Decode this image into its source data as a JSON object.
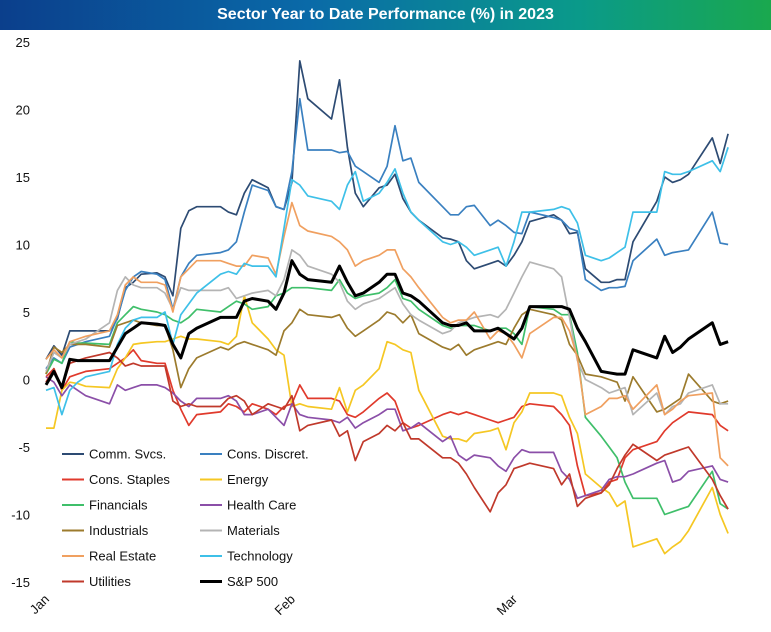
{
  "chart_data": {
    "type": "line",
    "title": "Sector Year to Date Performance (%) in 2023",
    "xlabel": "",
    "ylabel": "",
    "ylim": [
      -15,
      25
    ],
    "yticks": [
      -15,
      -10,
      -5,
      0,
      5,
      10,
      15,
      20,
      25
    ],
    "xticks": [
      {
        "label": "Jan",
        "day": 0
      },
      {
        "label": "Feb",
        "day": 31
      },
      {
        "label": "Mar",
        "day": 59
      }
    ],
    "x_days": [
      0,
      1,
      2,
      3,
      4,
      5,
      8,
      9,
      10,
      11,
      12,
      14,
      15,
      16,
      17,
      18,
      19,
      22,
      23,
      24,
      25,
      26,
      28,
      29,
      30,
      31,
      32,
      33,
      36,
      37,
      38,
      39,
      40,
      42,
      43,
      44,
      45,
      46,
      47,
      50,
      51,
      52,
      53,
      54,
      56,
      57,
      58,
      59,
      60,
      61,
      64,
      65,
      66,
      67,
      68,
      70,
      71,
      72,
      73,
      74,
      77,
      78,
      79,
      80,
      81,
      84,
      85,
      86,
      87,
      88
    ],
    "grid": false,
    "legend": "bottom-left",
    "series": [
      {
        "name": "Comm. Svcs.",
        "color": "#2d4b73",
        "values": [
          1.5,
          2.5,
          1.8,
          3.6,
          3.6,
          3.6,
          3.6,
          4.5,
          6.8,
          7.2,
          7.8,
          7.9,
          7.6,
          6.2,
          11.2,
          12.5,
          12.8,
          12.8,
          12.4,
          12.2,
          13.8,
          14.8,
          14.2,
          12.8,
          12.6,
          14.6,
          23.6,
          20.8,
          19.3,
          22.2,
          17.2,
          13.8,
          12.8,
          14.2,
          14.4,
          15.2,
          13.4,
          12.4,
          11.8,
          10.5,
          10.4,
          10.2,
          8.8,
          8.2,
          8.6,
          8.8,
          8.4,
          9.2,
          10.2,
          11.7,
          12.2,
          11.8,
          10.8,
          10.9,
          8.2,
          7.2,
          7.2,
          7.4,
          7.4,
          10.2,
          13.2,
          15.0,
          14.6,
          14.8,
          15.2,
          17.9,
          16.0,
          18.2
        ]
      },
      {
        "name": "Cons. Discret.",
        "color": "#3a80c0",
        "values": [
          0.8,
          1.6,
          1.2,
          2.4,
          2.6,
          2.8,
          3.2,
          4.6,
          6.6,
          7.6,
          8.0,
          7.8,
          7.4,
          5.2,
          7.6,
          8.6,
          9.2,
          9.4,
          9.6,
          10.2,
          12.4,
          14.4,
          14.0,
          12.8,
          12.6,
          15.4,
          20.8,
          17.0,
          17.0,
          16.8,
          16.9,
          15.8,
          15.4,
          14.6,
          15.8,
          18.8,
          16.2,
          16.4,
          14.6,
          12.8,
          12.2,
          12.2,
          12.8,
          12.9,
          11.4,
          11.8,
          11.4,
          10.9,
          10.8,
          12.4,
          12.0,
          11.8,
          11.2,
          11.0,
          7.4,
          6.6,
          6.8,
          6.8,
          6.9,
          8.8,
          10.4,
          9.2,
          9.4,
          9.5,
          9.6,
          12.4,
          10.1,
          10.0
        ]
      },
      {
        "name": "Cons. Staples",
        "color": "#e03a2c",
        "values": [
          0.2,
          0.8,
          -0.8,
          0.2,
          0.4,
          0.6,
          0.8,
          1.2,
          1.6,
          2.2,
          1.4,
          1.2,
          1.2,
          -0.8,
          -2.2,
          -3.4,
          -2.6,
          -2.4,
          -1.8,
          -2.0,
          -2.4,
          -1.8,
          -2.2,
          -2.6,
          -2.0,
          -1.8,
          -0.4,
          -1.4,
          -1.4,
          -1.6,
          -2.6,
          -2.8,
          -2.4,
          -1.4,
          -1.0,
          -1.6,
          -3.2,
          -3.6,
          -3.4,
          -2.6,
          -2.4,
          -2.6,
          -2.4,
          -2.6,
          -3.0,
          -3.2,
          -3.0,
          -2.8,
          -2.0,
          -1.8,
          -2.0,
          -2.6,
          -3.4,
          -6.4,
          -8.6,
          -8.4,
          -7.6,
          -7.4,
          -5.8,
          -5.2,
          -4.6,
          -3.8,
          -3.2,
          -2.8,
          -2.4,
          -2.6,
          -3.4,
          -3.8
        ]
      },
      {
        "name": "Energy",
        "color": "#f5c723",
        "values": [
          -3.6,
          -3.6,
          -0.8,
          -0.2,
          -0.3,
          -0.5,
          -0.6,
          0.8,
          1.6,
          2.6,
          2.7,
          2.8,
          2.8,
          3.0,
          3.2,
          3.0,
          3.0,
          2.8,
          2.6,
          3.2,
          6.2,
          4.2,
          3.0,
          2.2,
          1.8,
          -2.0,
          -1.8,
          -2.0,
          -2.2,
          -0.6,
          -2.4,
          -0.8,
          -0.4,
          0.8,
          2.8,
          2.6,
          2.2,
          2.0,
          -0.8,
          -4.2,
          -4.4,
          -4.4,
          -4.6,
          -4.0,
          -3.8,
          -3.6,
          -5.2,
          -3.2,
          -2.4,
          -1.0,
          -1.0,
          -1.2,
          -2.8,
          -4.0,
          -7.0,
          -8.0,
          -8.4,
          -9.4,
          -9.0,
          -12.4,
          -11.8,
          -12.9,
          -12.4,
          -12.0,
          -11.2,
          -8.0,
          -10.0,
          -11.4
        ]
      },
      {
        "name": "Financials",
        "color": "#3fbf6a",
        "values": [
          0.4,
          1.5,
          1.2,
          2.8,
          2.7,
          2.7,
          2.6,
          4.2,
          4.8,
          5.4,
          5.2,
          5.0,
          4.8,
          4.4,
          4.2,
          4.6,
          5.2,
          5.0,
          5.4,
          5.8,
          5.6,
          5.2,
          5.4,
          6.2,
          6.4,
          6.8,
          6.8,
          6.8,
          6.6,
          7.4,
          6.4,
          6.0,
          6.2,
          6.4,
          6.8,
          7.4,
          6.0,
          5.8,
          5.2,
          4.0,
          3.8,
          4.0,
          4.0,
          4.0,
          3.6,
          3.8,
          3.8,
          3.4,
          2.6,
          5.4,
          5.2,
          4.8,
          4.8,
          2.0,
          -2.8,
          -4.2,
          -5.0,
          -5.8,
          -7.6,
          -8.8,
          -8.8,
          -10.0,
          -9.8,
          -9.6,
          -9.4,
          -6.8,
          -9.2,
          -9.6
        ]
      },
      {
        "name": "Health Care",
        "color": "#8b4fa8",
        "values": [
          0.2,
          -0.2,
          -1.2,
          -0.4,
          -0.8,
          -1.2,
          -1.8,
          -0.4,
          -0.8,
          -0.6,
          -0.4,
          -0.4,
          -0.6,
          -1.0,
          -1.6,
          -2.0,
          -1.4,
          -1.4,
          -1.2,
          -1.6,
          -2.6,
          -2.6,
          -2.2,
          -2.8,
          -3.4,
          -1.8,
          -2.6,
          -2.8,
          -3.0,
          -3.2,
          -2.8,
          -3.6,
          -3.2,
          -2.6,
          -2.2,
          -2.2,
          -3.8,
          -3.6,
          -3.2,
          -4.6,
          -4.2,
          -5.6,
          -6.0,
          -5.6,
          -5.8,
          -6.4,
          -6.8,
          -5.8,
          -5.2,
          -5.4,
          -5.4,
          -6.8,
          -7.4,
          -8.8,
          -8.6,
          -8.2,
          -7.4,
          -7.2,
          -7.2,
          -7.0,
          -6.2,
          -6.0,
          -7.6,
          -7.4,
          -6.8,
          -6.4,
          -7.4,
          -7.6
        ]
      },
      {
        "name": "Industrials",
        "color": "#9c7b2d",
        "values": [
          0.4,
          2.4,
          2.0,
          2.6,
          2.6,
          2.6,
          2.4,
          4.0,
          4.2,
          4.4,
          4.2,
          4.0,
          4.0,
          2.2,
          -0.6,
          0.8,
          1.6,
          2.4,
          2.2,
          2.6,
          2.8,
          2.6,
          2.2,
          1.8,
          3.6,
          4.2,
          5.2,
          4.8,
          4.6,
          4.8,
          3.8,
          3.2,
          3.6,
          4.4,
          5.0,
          4.8,
          4.2,
          4.8,
          3.4,
          2.4,
          2.2,
          2.6,
          1.8,
          2.2,
          2.6,
          2.8,
          2.6,
          3.8,
          4.8,
          5.2,
          4.8,
          4.4,
          2.6,
          1.8,
          0.4,
          0.2,
          0.0,
          -0.2,
          -1.6,
          0.2,
          -2.4,
          -2.2,
          -1.8,
          -1.4,
          0.4,
          -1.6,
          -1.8,
          -1.6
        ]
      },
      {
        "name": "Materials",
        "color": "#b4b4b4",
        "values": [
          0.6,
          2.0,
          1.6,
          2.6,
          2.8,
          3.0,
          4.2,
          6.6,
          7.6,
          7.0,
          6.8,
          6.8,
          6.4,
          5.2,
          6.8,
          6.6,
          6.6,
          6.6,
          6.8,
          6.0,
          6.2,
          6.4,
          6.6,
          6.2,
          7.4,
          9.6,
          9.2,
          8.4,
          7.8,
          7.2,
          5.8,
          5.2,
          5.6,
          6.0,
          6.4,
          6.8,
          5.6,
          4.8,
          4.4,
          3.4,
          3.6,
          4.2,
          4.4,
          4.6,
          4.8,
          4.6,
          5.2,
          6.4,
          7.6,
          8.7,
          8.2,
          7.6,
          4.6,
          1.4,
          0.0,
          -0.6,
          -1.0,
          -0.8,
          -0.6,
          -2.6,
          -1.0,
          -2.6,
          -2.0,
          -1.8,
          -1.0,
          -0.4,
          -1.8,
          -1.8
        ]
      },
      {
        "name": "Real Estate",
        "color": "#f0a060",
        "values": [
          1.5,
          2.2,
          1.6,
          2.8,
          3.0,
          3.2,
          3.6,
          4.8,
          7.0,
          7.6,
          7.2,
          7.2,
          7.0,
          5.0,
          7.6,
          8.2,
          8.8,
          8.8,
          8.6,
          8.4,
          8.4,
          9.2,
          9.0,
          7.8,
          10.6,
          13.1,
          11.4,
          11.0,
          10.6,
          10.2,
          9.6,
          8.4,
          8.8,
          9.2,
          9.6,
          9.6,
          8.2,
          7.6,
          6.8,
          4.6,
          4.2,
          4.4,
          4.4,
          5.0,
          3.0,
          3.6,
          3.4,
          2.6,
          1.6,
          3.4,
          4.6,
          4.6,
          3.6,
          1.6,
          -2.6,
          -2.0,
          -1.4,
          -1.4,
          -1.2,
          -2.2,
          -0.4,
          -2.6,
          -2.2,
          -1.6,
          -1.2,
          -1.0,
          -5.8,
          -6.4
        ]
      },
      {
        "name": "Technology",
        "color": "#3ec0e8",
        "values": [
          -0.8,
          -0.6,
          -2.6,
          -0.8,
          -0.2,
          0.2,
          0.6,
          2.6,
          3.8,
          4.4,
          4.6,
          4.6,
          5.0,
          2.6,
          4.8,
          5.6,
          6.4,
          7.8,
          8.0,
          7.8,
          8.6,
          8.4,
          8.4,
          7.6,
          11.2,
          14.8,
          14.4,
          13.6,
          13.2,
          12.6,
          14.4,
          15.4,
          13.2,
          13.8,
          14.6,
          15.6,
          13.8,
          12.4,
          11.8,
          10.2,
          10.0,
          10.2,
          9.8,
          9.2,
          9.6,
          9.8,
          8.4,
          10.2,
          12.4,
          12.4,
          12.6,
          12.8,
          12.6,
          11.6,
          9.2,
          8.8,
          9.0,
          9.4,
          9.8,
          12.4,
          12.4,
          15.4,
          15.2,
          15.2,
          15.4,
          16.2,
          15.4,
          17.2
        ]
      },
      {
        "name": "Utilities",
        "color": "#c0392b",
        "values": [
          -0.2,
          0.8,
          -0.6,
          1.2,
          1.4,
          1.6,
          2.0,
          1.6,
          1.0,
          1.2,
          1.0,
          1.0,
          1.0,
          -1.6,
          -2.0,
          -1.8,
          -2.0,
          -2.0,
          -1.4,
          -1.2,
          -1.6,
          -2.6,
          -1.8,
          -2.0,
          -2.2,
          -1.2,
          -3.8,
          -3.4,
          -3.0,
          -4.2,
          -3.8,
          -6.0,
          -4.6,
          -4.0,
          -3.4,
          -3.8,
          -3.2,
          -4.4,
          -4.4,
          -5.8,
          -5.8,
          -6.2,
          -7.0,
          -8.0,
          -9.8,
          -8.4,
          -7.8,
          -6.6,
          -6.4,
          -6.2,
          -6.6,
          -7.8,
          -7.0,
          -9.4,
          -8.8,
          -8.4,
          -7.8,
          -6.6,
          -5.6,
          -4.8,
          -6.0,
          -5.6,
          -5.4,
          -5.2,
          -5.0,
          -7.4,
          -8.6,
          -9.6
        ]
      },
      {
        "name": "S&P 500",
        "color": "#000000",
        "values": [
          -0.4,
          0.6,
          -0.6,
          1.5,
          1.4,
          1.4,
          1.4,
          2.4,
          3.4,
          3.8,
          4.2,
          4.1,
          4.0,
          2.6,
          1.6,
          3.4,
          3.8,
          4.6,
          4.6,
          4.6,
          5.8,
          6.0,
          5.8,
          5.2,
          6.4,
          8.8,
          7.8,
          7.4,
          7.2,
          8.4,
          7.2,
          6.2,
          6.4,
          7.2,
          7.8,
          7.8,
          6.4,
          6.2,
          5.8,
          4.2,
          4.0,
          4.0,
          4.2,
          3.6,
          3.6,
          3.8,
          3.4,
          3.0,
          3.8,
          5.4,
          5.4,
          5.4,
          5.2,
          3.8,
          2.8,
          0.6,
          0.5,
          0.4,
          0.4,
          2.2,
          1.6,
          3.2,
          2.0,
          2.4,
          3.0,
          4.2,
          2.6,
          2.8
        ]
      }
    ]
  }
}
